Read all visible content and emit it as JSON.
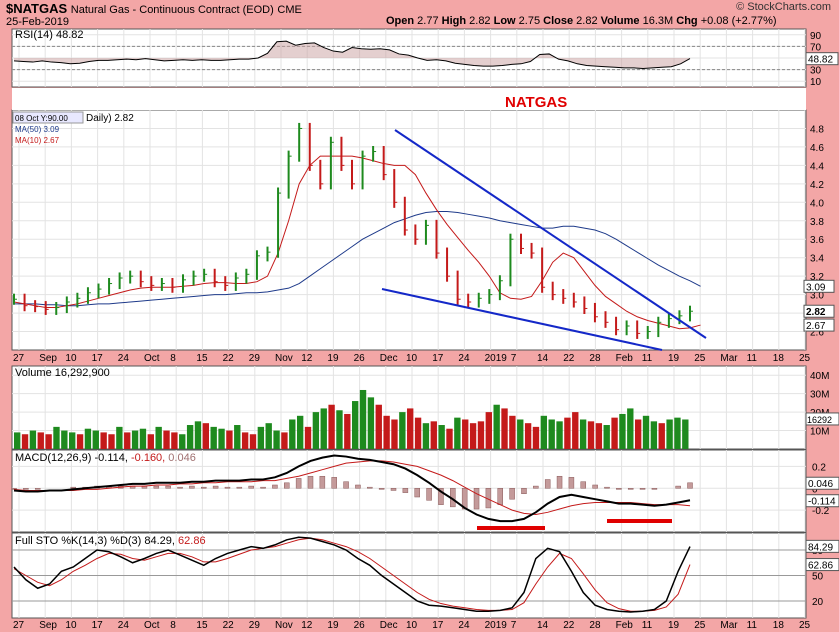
{
  "header": {
    "symbol": "$NATGAS",
    "name": "Natural Gas - Continuous Contract (EOD)",
    "exchange": "CME",
    "date": "25-Feb-2019",
    "brand": "© StockCharts.com",
    "ohlc": [
      {
        "label": "Open",
        "value": "2.77"
      },
      {
        "label": "High",
        "value": "2.82"
      },
      {
        "label": "Low",
        "value": "2.75"
      },
      {
        "label": "Close",
        "value": "2.82"
      },
      {
        "label": "Volume",
        "value": "16.3M"
      },
      {
        "label": "Chg",
        "value": "+0.08 (+2.77%)"
      }
    ]
  },
  "colors": {
    "background": "#f3a6a6",
    "panel": "#ffffff",
    "up": "#1e8a1e",
    "down": "#c41a1a",
    "ma50": "#1e3a8a",
    "ma10": "#c41a1a",
    "trendline": "#1428c8",
    "annotation": "#e00000"
  },
  "annotation": "NATGAS",
  "chart_data": [
    {
      "type": "line",
      "title": "RSI(14) 48.82",
      "panel": "rsi",
      "ylim": [
        0,
        100
      ],
      "y_ticks": [
        10,
        30,
        50,
        70,
        90
      ],
      "last_value": "48.82",
      "values": [
        45,
        44,
        43,
        45,
        43,
        42,
        40,
        41,
        44,
        46,
        46,
        47,
        48,
        47,
        49,
        47,
        45,
        46,
        47,
        46,
        47,
        46,
        46,
        47,
        48,
        48,
        50,
        58,
        78,
        79,
        72,
        75,
        76,
        68,
        62,
        60,
        68,
        66,
        65,
        66,
        64,
        57,
        55,
        50,
        46,
        47,
        45,
        41,
        39,
        37,
        36,
        36,
        37,
        39,
        40,
        44,
        56,
        57,
        48,
        45,
        40,
        37,
        36,
        35,
        34,
        33,
        33,
        32,
        33,
        34,
        35,
        40,
        49
      ]
    },
    {
      "type": "bar",
      "title": "Daily",
      "panel": "price",
      "legend": [
        "08 Oct Y:90.00",
        "Daily) 2.82",
        "MA(50) 3.09",
        "MA(10) 2.67"
      ],
      "ylim": [
        2.4,
        5.0
      ],
      "y_ticks": [
        2.6,
        2.8,
        3.0,
        3.2,
        3.4,
        3.6,
        3.8,
        4.0,
        4.2,
        4.4,
        4.6,
        4.8
      ],
      "last_labels": [
        "3.09",
        "2.82",
        "2.67"
      ],
      "x_labels": [
        "27",
        "Sep",
        "10",
        "17",
        "24",
        "Oct",
        "8",
        "15",
        "22",
        "29",
        "Nov",
        "12",
        "19",
        "26",
        "Dec",
        "10",
        "17",
        "24",
        "2019",
        "7",
        "14",
        "22",
        "28",
        "Feb",
        "11",
        "19",
        "25",
        "Mar",
        "11",
        "18",
        "25"
      ],
      "series": [
        {
          "name": "MA(50)",
          "values": [
            2.9,
            2.9,
            2.9,
            2.89,
            2.89,
            2.88,
            2.88,
            2.89,
            2.9,
            2.9,
            2.91,
            2.92,
            2.93,
            2.94,
            2.95,
            2.96,
            2.97,
            2.98,
            2.99,
            3.0,
            3.0,
            3.01,
            3.02,
            3.02,
            3.03,
            3.05,
            3.07,
            3.12,
            3.2,
            3.28,
            3.36,
            3.44,
            3.52,
            3.6,
            3.66,
            3.72,
            3.78,
            3.82,
            3.86,
            3.89,
            3.9,
            3.9,
            3.89,
            3.87,
            3.85,
            3.83,
            3.8,
            3.78,
            3.76,
            3.74,
            3.72,
            3.72,
            3.74,
            3.74,
            3.72,
            3.7,
            3.66,
            3.6,
            3.53,
            3.46,
            3.39,
            3.32,
            3.26,
            3.2,
            3.15,
            3.09
          ]
        },
        {
          "name": "MA(10)",
          "values": [
            2.92,
            2.9,
            2.88,
            2.86,
            2.86,
            2.88,
            2.9,
            2.93,
            2.96,
            2.99,
            3.02,
            3.05,
            3.07,
            3.08,
            3.08,
            3.08,
            3.09,
            3.1,
            3.12,
            3.13,
            3.13,
            3.12,
            3.12,
            3.14,
            3.2,
            3.45,
            3.8,
            4.2,
            4.4,
            4.5,
            4.5,
            4.5,
            4.5,
            4.48,
            4.45,
            4.42,
            4.4,
            4.4,
            4.3,
            4.1,
            3.92,
            3.76,
            3.62,
            3.48,
            3.35,
            3.2,
            3.02,
            2.96,
            2.95,
            2.98,
            3.15,
            3.35,
            3.45,
            3.4,
            3.25,
            3.1,
            2.98,
            2.9,
            2.82,
            2.76,
            2.72,
            2.69,
            2.66,
            2.63,
            2.64,
            2.67
          ]
        },
        {
          "name": "Close",
          "values": [
            2.95,
            2.88,
            2.87,
            2.84,
            2.86,
            2.92,
            2.96,
            3.02,
            3.06,
            3.12,
            3.18,
            3.2,
            3.14,
            3.1,
            3.12,
            3.08,
            3.16,
            3.2,
            3.22,
            3.14,
            3.1,
            3.18,
            3.22,
            3.42,
            3.46,
            4.1,
            4.5,
            4.8,
            4.4,
            4.2,
            4.65,
            4.4,
            4.2,
            4.5,
            4.55,
            4.3,
            4.0,
            3.7,
            3.6,
            3.75,
            3.45,
            3.2,
            2.95,
            2.92,
            2.96,
            3.0,
            3.15,
            3.6,
            3.5,
            3.45,
            3.08,
            3.0,
            2.96,
            2.92,
            2.85,
            2.76,
            2.7,
            2.62,
            2.66,
            2.58,
            2.6,
            2.7,
            2.74,
            2.77,
            2.82
          ]
        }
      ]
    },
    {
      "type": "bar",
      "title": "Volume 16,292,900",
      "panel": "volume",
      "ylim": [
        0,
        45
      ],
      "y_ticks": [
        10,
        20,
        30,
        40
      ],
      "y_tick_labels": [
        "10M",
        "20M",
        "30M",
        "40M"
      ],
      "last_value": "16292900",
      "values": [
        9,
        8,
        10,
        9,
        8,
        12,
        10,
        9,
        8,
        11,
        10,
        9,
        8,
        12,
        9,
        10,
        11,
        8,
        12,
        10,
        9,
        8,
        13,
        15,
        14,
        12,
        11,
        10,
        13,
        9,
        8,
        12,
        14,
        10,
        9,
        16,
        18,
        12,
        20,
        22,
        24,
        21,
        19,
        26,
        32,
        28,
        24,
        18,
        16,
        20,
        22,
        17,
        14,
        15,
        13,
        11,
        17,
        16,
        14,
        15,
        20,
        24,
        22,
        18,
        16,
        14,
        12,
        18,
        16,
        15,
        17,
        20,
        16,
        15,
        14,
        13,
        17,
        19,
        22,
        16,
        18,
        15,
        14,
        16,
        17,
        16
      ],
      "up": [
        1,
        0,
        1,
        0,
        0,
        1,
        1,
        1,
        0,
        1,
        1,
        0,
        0,
        1,
        0,
        1,
        1,
        0,
        1,
        0,
        0,
        1,
        1,
        1,
        0,
        1,
        1,
        0,
        1,
        0,
        0,
        1,
        1,
        1,
        0,
        1,
        1,
        0,
        1,
        1,
        0,
        1,
        0,
        1,
        1,
        1,
        0,
        0,
        0,
        1,
        0,
        0,
        1,
        0,
        1,
        0,
        1,
        0,
        0,
        0,
        0,
        1,
        0,
        0,
        1,
        0,
        0,
        1,
        1,
        1,
        0,
        0,
        1,
        0,
        0,
        1,
        0,
        1,
        1,
        0,
        1,
        1,
        0,
        1,
        1,
        1
      ]
    },
    {
      "type": "line",
      "title": "MACD(12,26,9)",
      "panel": "macd",
      "legend": [
        "-0.114",
        "-0.160",
        "0.046"
      ],
      "ylim": [
        -0.4,
        0.35
      ],
      "y_ticks": [
        0.2,
        0.0,
        -0.2
      ],
      "last_labels": [
        "0.046",
        "-0.114"
      ],
      "series": [
        {
          "name": "MACD",
          "values": [
            -0.02,
            -0.03,
            -0.03,
            -0.02,
            -0.02,
            -0.01,
            0.0,
            0.01,
            0.02,
            0.03,
            0.04,
            0.04,
            0.05,
            0.05,
            0.05,
            0.06,
            0.06,
            0.07,
            0.07,
            0.07,
            0.08,
            0.08,
            0.1,
            0.14,
            0.2,
            0.25,
            0.28,
            0.3,
            0.29,
            0.27,
            0.26,
            0.24,
            0.22,
            0.18,
            0.12,
            0.05,
            -0.03,
            -0.1,
            -0.18,
            -0.24,
            -0.28,
            -0.3,
            -0.3,
            -0.28,
            -0.22,
            -0.14,
            -0.08,
            -0.06,
            -0.08,
            -0.1,
            -0.12,
            -0.14,
            -0.14,
            -0.15,
            -0.16,
            -0.15,
            -0.13,
            -0.11
          ]
        },
        {
          "name": "Signal",
          "values": [
            -0.01,
            -0.02,
            -0.02,
            -0.02,
            -0.02,
            -0.02,
            -0.01,
            -0.01,
            0.0,
            0.01,
            0.02,
            0.02,
            0.03,
            0.03,
            0.04,
            0.04,
            0.05,
            0.05,
            0.06,
            0.06,
            0.06,
            0.07,
            0.07,
            0.09,
            0.11,
            0.14,
            0.17,
            0.2,
            0.23,
            0.24,
            0.25,
            0.25,
            0.24,
            0.22,
            0.2,
            0.16,
            0.12,
            0.07,
            0.01,
            -0.05,
            -0.1,
            -0.15,
            -0.2,
            -0.23,
            -0.24,
            -0.22,
            -0.19,
            -0.16,
            -0.14,
            -0.13,
            -0.13,
            -0.13,
            -0.13,
            -0.14,
            -0.15,
            -0.15,
            -0.15,
            -0.16
          ]
        }
      ]
    },
    {
      "type": "line",
      "title": "Full STO %K(14,3) %D(3)",
      "panel": "stochastic",
      "legend": [
        "84.29",
        "62.86"
      ],
      "ylim": [
        0,
        100
      ],
      "y_ticks": [
        20,
        50,
        80
      ],
      "last_labels": [
        "84.29",
        "62.86"
      ],
      "x_labels": [
        "27",
        "Sep",
        "10",
        "17",
        "24",
        "Oct",
        "8",
        "15",
        "22",
        "29",
        "Nov",
        "12",
        "19",
        "26",
        "Dec",
        "10",
        "17",
        "24",
        "2019",
        "7",
        "14",
        "22",
        "28",
        "Feb",
        "11",
        "19",
        "25",
        "Mar",
        "11",
        "18",
        "25"
      ],
      "series": [
        {
          "name": "%K",
          "values": [
            60,
            45,
            35,
            40,
            55,
            60,
            70,
            80,
            78,
            72,
            65,
            70,
            76,
            80,
            74,
            68,
            62,
            70,
            76,
            80,
            84,
            82,
            86,
            92,
            95,
            94,
            90,
            86,
            80,
            70,
            62,
            50,
            40,
            30,
            20,
            15,
            14,
            12,
            10,
            8,
            8,
            9,
            12,
            30,
            70,
            82,
            78,
            55,
            30,
            15,
            10,
            8,
            7,
            8,
            10,
            20,
            55,
            84
          ]
        },
        {
          "name": "%D",
          "values": [
            58,
            50,
            42,
            38,
            45,
            55,
            62,
            70,
            76,
            75,
            70,
            68,
            72,
            76,
            76,
            72,
            66,
            66,
            70,
            75,
            80,
            82,
            84,
            88,
            92,
            94,
            92,
            88,
            84,
            78,
            70,
            60,
            50,
            40,
            30,
            22,
            17,
            14,
            12,
            10,
            9,
            9,
            10,
            18,
            40,
            60,
            76,
            70,
            52,
            33,
            18,
            11,
            8,
            8,
            9,
            13,
            28,
            62.86
          ]
        }
      ]
    }
  ]
}
